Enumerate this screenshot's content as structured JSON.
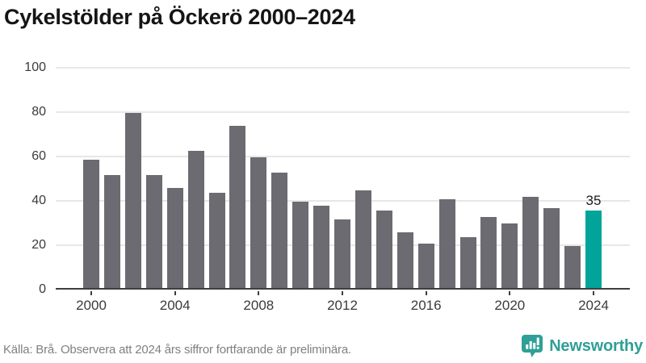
{
  "title": "Cykelstölder på Öckerö 2000–2024",
  "footer": {
    "source_note": "Källa: Brå. Observera att 2024 års siffror fortfarande är preliminära."
  },
  "branding": {
    "name": "Newsworthy",
    "icon": "speech-bubble-bar-chart-icon",
    "color": "#2f9f97"
  },
  "colors": {
    "bar": "#6c6b71",
    "highlight_bar": "#00a49b",
    "grid": "#e7e7e7",
    "axis": "#3e3e42",
    "tick_label": "#3b3b3b",
    "title": "#151515",
    "footer_text": "#808080",
    "value_label": "#1c1c1c"
  },
  "chart_data": {
    "type": "bar",
    "title": "Cykelstölder på Öckerö 2000–2024",
    "categories": [
      "2000",
      "2001",
      "2002",
      "2003",
      "2004",
      "2005",
      "2006",
      "2007",
      "2008",
      "2009",
      "2010",
      "2011",
      "2012",
      "2013",
      "2014",
      "2015",
      "2016",
      "2017",
      "2018",
      "2019",
      "2020",
      "2021",
      "2022",
      "2023",
      "2024"
    ],
    "values": [
      58,
      51,
      79,
      51,
      45,
      62,
      43,
      73,
      59,
      52,
      39,
      37,
      31,
      44,
      35,
      25,
      20,
      40,
      23,
      32,
      29,
      41,
      36,
      19,
      35
    ],
    "highlighted_category": "2024",
    "highlight_index": 24,
    "data_labels": [
      {
        "index": 24,
        "text": "35"
      }
    ],
    "x_tick_labels": [
      "2000",
      "2004",
      "2008",
      "2012",
      "2016",
      "2020",
      "2024"
    ],
    "y_ticks": [
      0,
      20,
      40,
      60,
      80,
      100
    ],
    "ylim": [
      0,
      100
    ],
    "grid": true,
    "legend": false
  }
}
